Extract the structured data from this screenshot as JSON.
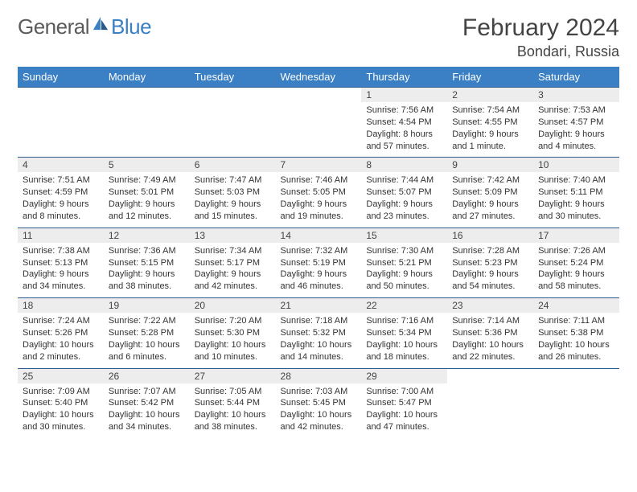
{
  "logo": {
    "general": "General",
    "blue": "Blue"
  },
  "title": "February 2024",
  "location": "Bondari, Russia",
  "header_color": "#3b7fc4",
  "daynames": [
    "Sunday",
    "Monday",
    "Tuesday",
    "Wednesday",
    "Thursday",
    "Friday",
    "Saturday"
  ],
  "weeks": [
    [
      null,
      null,
      null,
      null,
      {
        "n": "1",
        "sr": "Sunrise: 7:56 AM",
        "ss": "Sunset: 4:54 PM",
        "d1": "Daylight: 8 hours",
        "d2": "and 57 minutes."
      },
      {
        "n": "2",
        "sr": "Sunrise: 7:54 AM",
        "ss": "Sunset: 4:55 PM",
        "d1": "Daylight: 9 hours",
        "d2": "and 1 minute."
      },
      {
        "n": "3",
        "sr": "Sunrise: 7:53 AM",
        "ss": "Sunset: 4:57 PM",
        "d1": "Daylight: 9 hours",
        "d2": "and 4 minutes."
      }
    ],
    [
      {
        "n": "4",
        "sr": "Sunrise: 7:51 AM",
        "ss": "Sunset: 4:59 PM",
        "d1": "Daylight: 9 hours",
        "d2": "and 8 minutes."
      },
      {
        "n": "5",
        "sr": "Sunrise: 7:49 AM",
        "ss": "Sunset: 5:01 PM",
        "d1": "Daylight: 9 hours",
        "d2": "and 12 minutes."
      },
      {
        "n": "6",
        "sr": "Sunrise: 7:47 AM",
        "ss": "Sunset: 5:03 PM",
        "d1": "Daylight: 9 hours",
        "d2": "and 15 minutes."
      },
      {
        "n": "7",
        "sr": "Sunrise: 7:46 AM",
        "ss": "Sunset: 5:05 PM",
        "d1": "Daylight: 9 hours",
        "d2": "and 19 minutes."
      },
      {
        "n": "8",
        "sr": "Sunrise: 7:44 AM",
        "ss": "Sunset: 5:07 PM",
        "d1": "Daylight: 9 hours",
        "d2": "and 23 minutes."
      },
      {
        "n": "9",
        "sr": "Sunrise: 7:42 AM",
        "ss": "Sunset: 5:09 PM",
        "d1": "Daylight: 9 hours",
        "d2": "and 27 minutes."
      },
      {
        "n": "10",
        "sr": "Sunrise: 7:40 AM",
        "ss": "Sunset: 5:11 PM",
        "d1": "Daylight: 9 hours",
        "d2": "and 30 minutes."
      }
    ],
    [
      {
        "n": "11",
        "sr": "Sunrise: 7:38 AM",
        "ss": "Sunset: 5:13 PM",
        "d1": "Daylight: 9 hours",
        "d2": "and 34 minutes."
      },
      {
        "n": "12",
        "sr": "Sunrise: 7:36 AM",
        "ss": "Sunset: 5:15 PM",
        "d1": "Daylight: 9 hours",
        "d2": "and 38 minutes."
      },
      {
        "n": "13",
        "sr": "Sunrise: 7:34 AM",
        "ss": "Sunset: 5:17 PM",
        "d1": "Daylight: 9 hours",
        "d2": "and 42 minutes."
      },
      {
        "n": "14",
        "sr": "Sunrise: 7:32 AM",
        "ss": "Sunset: 5:19 PM",
        "d1": "Daylight: 9 hours",
        "d2": "and 46 minutes."
      },
      {
        "n": "15",
        "sr": "Sunrise: 7:30 AM",
        "ss": "Sunset: 5:21 PM",
        "d1": "Daylight: 9 hours",
        "d2": "and 50 minutes."
      },
      {
        "n": "16",
        "sr": "Sunrise: 7:28 AM",
        "ss": "Sunset: 5:23 PM",
        "d1": "Daylight: 9 hours",
        "d2": "and 54 minutes."
      },
      {
        "n": "17",
        "sr": "Sunrise: 7:26 AM",
        "ss": "Sunset: 5:24 PM",
        "d1": "Daylight: 9 hours",
        "d2": "and 58 minutes."
      }
    ],
    [
      {
        "n": "18",
        "sr": "Sunrise: 7:24 AM",
        "ss": "Sunset: 5:26 PM",
        "d1": "Daylight: 10 hours",
        "d2": "and 2 minutes."
      },
      {
        "n": "19",
        "sr": "Sunrise: 7:22 AM",
        "ss": "Sunset: 5:28 PM",
        "d1": "Daylight: 10 hours",
        "d2": "and 6 minutes."
      },
      {
        "n": "20",
        "sr": "Sunrise: 7:20 AM",
        "ss": "Sunset: 5:30 PM",
        "d1": "Daylight: 10 hours",
        "d2": "and 10 minutes."
      },
      {
        "n": "21",
        "sr": "Sunrise: 7:18 AM",
        "ss": "Sunset: 5:32 PM",
        "d1": "Daylight: 10 hours",
        "d2": "and 14 minutes."
      },
      {
        "n": "22",
        "sr": "Sunrise: 7:16 AM",
        "ss": "Sunset: 5:34 PM",
        "d1": "Daylight: 10 hours",
        "d2": "and 18 minutes."
      },
      {
        "n": "23",
        "sr": "Sunrise: 7:14 AM",
        "ss": "Sunset: 5:36 PM",
        "d1": "Daylight: 10 hours",
        "d2": "and 22 minutes."
      },
      {
        "n": "24",
        "sr": "Sunrise: 7:11 AM",
        "ss": "Sunset: 5:38 PM",
        "d1": "Daylight: 10 hours",
        "d2": "and 26 minutes."
      }
    ],
    [
      {
        "n": "25",
        "sr": "Sunrise: 7:09 AM",
        "ss": "Sunset: 5:40 PM",
        "d1": "Daylight: 10 hours",
        "d2": "and 30 minutes."
      },
      {
        "n": "26",
        "sr": "Sunrise: 7:07 AM",
        "ss": "Sunset: 5:42 PM",
        "d1": "Daylight: 10 hours",
        "d2": "and 34 minutes."
      },
      {
        "n": "27",
        "sr": "Sunrise: 7:05 AM",
        "ss": "Sunset: 5:44 PM",
        "d1": "Daylight: 10 hours",
        "d2": "and 38 minutes."
      },
      {
        "n": "28",
        "sr": "Sunrise: 7:03 AM",
        "ss": "Sunset: 5:45 PM",
        "d1": "Daylight: 10 hours",
        "d2": "and 42 minutes."
      },
      {
        "n": "29",
        "sr": "Sunrise: 7:00 AM",
        "ss": "Sunset: 5:47 PM",
        "d1": "Daylight: 10 hours",
        "d2": "and 47 minutes."
      },
      null,
      null
    ]
  ]
}
